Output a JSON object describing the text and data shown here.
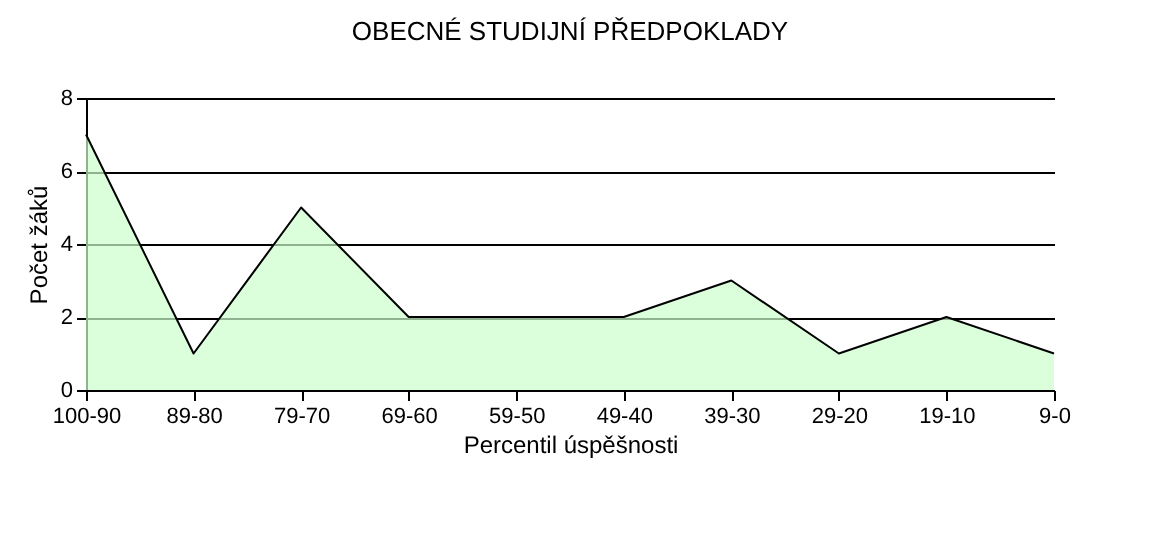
{
  "chart_data": {
    "type": "area",
    "title": "OBECNÉ STUDIJNÍ PŘEDPOKLADY",
    "xlabel": "Percentil úspěšnosti",
    "ylabel": "Počet žáků",
    "categories": [
      "100-90",
      "89-80",
      "79-70",
      "69-60",
      "59-50",
      "49-40",
      "39-30",
      "29-20",
      "19-10",
      "9-0"
    ],
    "series": [
      {
        "color": "#ccffcc",
        "values": [
          7,
          1,
          5,
          2,
          2,
          2,
          3,
          1,
          2,
          1
        ]
      }
    ],
    "ylim": [
      0,
      8
    ],
    "yticks": [
      0,
      2,
      4,
      6,
      8
    ],
    "grid": "y"
  }
}
